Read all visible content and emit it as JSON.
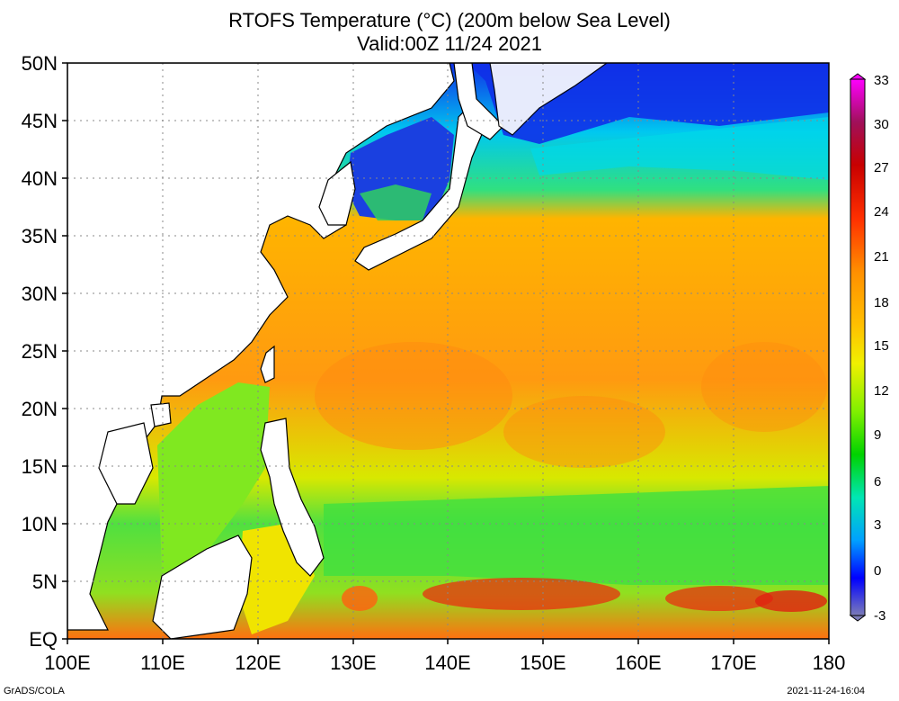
{
  "header": {
    "title_line1": "RTOFS Temperature (°C) (200m below Sea Level)",
    "title_line2": "Valid:00Z 11/24 2021"
  },
  "footer": {
    "credit": "GrADS/COLA",
    "timestamp": "2021-11-24-16:04"
  },
  "map": {
    "lon_range": [
      100,
      180
    ],
    "lat_range": [
      0,
      50
    ],
    "lat_labels": [
      "50N",
      "45N",
      "40N",
      "35N",
      "30N",
      "25N",
      "20N",
      "15N",
      "10N",
      "5N",
      "EQ"
    ],
    "lon_labels": [
      "100E",
      "110E",
      "120E",
      "130E",
      "140E",
      "150E",
      "160E",
      "170E",
      "180"
    ],
    "gridlines": "dotted"
  },
  "colorbar": {
    "labels": [
      "33",
      "30",
      "27",
      "24",
      "21",
      "18",
      "15",
      "12",
      "9",
      "6",
      "3",
      "0",
      "-3"
    ],
    "colors": [
      "#ff00ff",
      "#b2006a",
      "#c80000",
      "#ff2a00",
      "#ff8c00",
      "#ffb400",
      "#f0e000",
      "#a8f000",
      "#00d200",
      "#00e6b4",
      "#00aaff",
      "#0000ff",
      "#7c7cb8"
    ]
  },
  "colors": {
    "cold": "#1030e8",
    "cyan": "#00e0e0",
    "green": "#40e040",
    "yellow": "#e8e800",
    "orange": "#ffb000",
    "red": "#e83010"
  }
}
